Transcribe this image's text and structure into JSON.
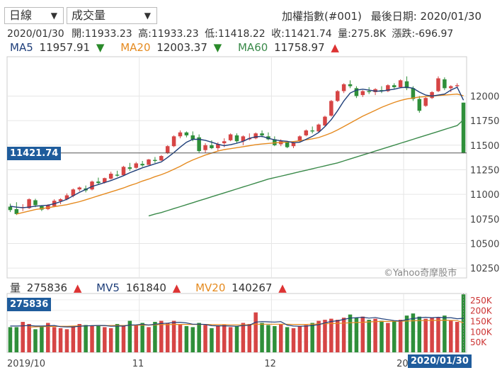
{
  "controls": {
    "period_select": "日線",
    "indicator_select": "成交量"
  },
  "header": {
    "title": "加權指數(#001)",
    "last_date_label": "最後日期:",
    "last_date": "2020/01/30"
  },
  "quote": {
    "date": "2020/01/30",
    "open_label": "開:",
    "open": "11933.23",
    "high_label": "高:",
    "high": "11933.23",
    "low_label": "低:",
    "low": "11418.22",
    "close_label": "收:",
    "close": "11421.74",
    "volume_label": "量:",
    "volume": "275.8K",
    "change_label": "漲跌:",
    "change": "-696.97"
  },
  "ma_legend": [
    {
      "name": "MA5",
      "value": "11957.91",
      "dir": "down",
      "color": "#1f3f7a"
    },
    {
      "name": "MA20",
      "value": "12003.37",
      "dir": "down",
      "color": "#e58a1f"
    },
    {
      "name": "MA60",
      "value": "11758.97",
      "dir": "up",
      "color": "#3a8a4a"
    }
  ],
  "vol_legend": [
    {
      "name": "量",
      "value": "275836",
      "dir": "up",
      "color": "#333"
    },
    {
      "name": "MV5",
      "value": "161840",
      "dir": "up",
      "color": "#1f3f7a"
    },
    {
      "name": "MV20",
      "value": "140267",
      "dir": "up",
      "color": "#e58a1f"
    }
  ],
  "watermark": "©Yahoo奇摩股市",
  "price_tag": "11421.74",
  "volume_tag": "275836",
  "date_tag": "2020/01/30",
  "chart_data": {
    "type": "candlestick",
    "price_axis": {
      "ylim": [
        10150,
        12400
      ],
      "ticks": [
        12000,
        11750,
        11500,
        11250,
        11000,
        10750,
        10500,
        10250
      ]
    },
    "volume_axis": {
      "ylim": [
        0,
        280
      ],
      "ticks": [
        250,
        200,
        150,
        100,
        50
      ],
      "tick_labels": [
        "250K",
        "200K",
        "150K",
        "100K",
        "50K"
      ]
    },
    "x_labels": [
      {
        "label": "2019/10",
        "index": 0
      },
      {
        "label": "11",
        "index": 21
      },
      {
        "label": "12",
        "index": 42
      },
      {
        "label": "2020/01",
        "index": 63
      }
    ],
    "ohlc": [
      [
        10875,
        10905,
        10820,
        10840
      ],
      [
        10850,
        10920,
        10790,
        10800
      ],
      [
        10860,
        10900,
        10830,
        10870
      ],
      [
        10860,
        10960,
        10850,
        10950
      ],
      [
        10940,
        10955,
        10870,
        10890
      ],
      [
        10880,
        10890,
        10830,
        10845
      ],
      [
        10850,
        10900,
        10840,
        10890
      ],
      [
        10880,
        10950,
        10870,
        10935
      ],
      [
        10930,
        10960,
        10900,
        10950
      ],
      [
        10950,
        11010,
        10940,
        10990
      ],
      [
        10985,
        11060,
        10970,
        11050
      ],
      [
        11050,
        11080,
        11030,
        11070
      ],
      [
        11060,
        11090,
        11020,
        11040
      ],
      [
        11050,
        11140,
        11040,
        11130
      ],
      [
        11130,
        11170,
        11100,
        11115
      ],
      [
        11120,
        11170,
        11110,
        11165
      ],
      [
        11160,
        11230,
        11150,
        11210
      ],
      [
        11200,
        11240,
        11180,
        11190
      ],
      [
        11195,
        11290,
        11190,
        11280
      ],
      [
        11275,
        11320,
        11240,
        11260
      ],
      [
        11270,
        11330,
        11260,
        11315
      ],
      [
        11310,
        11340,
        11280,
        11295
      ],
      [
        11300,
        11360,
        11300,
        11355
      ],
      [
        11350,
        11380,
        11320,
        11340
      ],
      [
        11345,
        11400,
        11340,
        11390
      ],
      [
        11420,
        11500,
        11410,
        11490
      ],
      [
        11490,
        11600,
        11480,
        11590
      ],
      [
        11590,
        11650,
        11570,
        11630
      ],
      [
        11630,
        11640,
        11580,
        11600
      ],
      [
        11600,
        11640,
        11540,
        11560
      ],
      [
        11580,
        11610,
        11420,
        11440
      ],
      [
        11450,
        11520,
        11420,
        11500
      ],
      [
        11500,
        11550,
        11460,
        11470
      ],
      [
        11470,
        11530,
        11440,
        11510
      ],
      [
        11520,
        11570,
        11480,
        11540
      ],
      [
        11550,
        11620,
        11540,
        11610
      ],
      [
        11600,
        11620,
        11520,
        11540
      ],
      [
        11540,
        11600,
        11500,
        11590
      ],
      [
        11560,
        11620,
        11550,
        11570
      ],
      [
        11570,
        11630,
        11560,
        11620
      ],
      [
        11620,
        11650,
        11580,
        11600
      ],
      [
        11590,
        11630,
        11550,
        11560
      ],
      [
        11560,
        11590,
        11490,
        11500
      ],
      [
        11510,
        11560,
        11490,
        11540
      ],
      [
        11530,
        11540,
        11470,
        11480
      ],
      [
        11490,
        11540,
        11470,
        11530
      ],
      [
        11540,
        11600,
        11530,
        11590
      ],
      [
        11600,
        11660,
        11590,
        11650
      ],
      [
        11650,
        11690,
        11620,
        11640
      ],
      [
        11640,
        11720,
        11630,
        11710
      ],
      [
        11700,
        11800,
        11690,
        11790
      ],
      [
        11800,
        11960,
        11790,
        11950
      ],
      [
        11950,
        12060,
        11940,
        12050
      ],
      [
        12050,
        12130,
        12030,
        12120
      ],
      [
        12120,
        12160,
        12080,
        12100
      ],
      [
        12080,
        12100,
        11980,
        12000
      ],
      [
        12010,
        12060,
        11990,
        12050
      ],
      [
        12050,
        12090,
        12020,
        12040
      ],
      [
        12040,
        12080,
        12010,
        12070
      ],
      [
        12060,
        12100,
        12030,
        12050
      ],
      [
        12050,
        12120,
        12040,
        12110
      ],
      [
        12110,
        12130,
        12070,
        12090
      ],
      [
        12090,
        12170,
        12080,
        12160
      ],
      [
        12150,
        12200,
        12060,
        12080
      ],
      [
        12080,
        12100,
        11950,
        11970
      ],
      [
        11970,
        12000,
        11830,
        11850
      ],
      [
        11900,
        11990,
        11890,
        11980
      ],
      [
        11980,
        12050,
        11970,
        12040
      ],
      [
        12050,
        12200,
        12040,
        12180
      ],
      [
        12170,
        12190,
        12060,
        12080
      ],
      [
        12080,
        12110,
        12040,
        12100
      ],
      [
        12100,
        12130,
        12080,
        12110
      ],
      [
        11933,
        11933,
        11418,
        11421
      ]
    ],
    "ma5": [
      10880,
      10870,
      10865,
      10870,
      10880,
      10885,
      10890,
      10905,
      10925,
      10950,
      10985,
      11020,
      11050,
      11080,
      11100,
      11120,
      11140,
      11165,
      11190,
      11220,
      11245,
      11270,
      11290,
      11310,
      11330,
      11375,
      11425,
      11480,
      11530,
      11560,
      11560,
      11550,
      11530,
      11510,
      11495,
      11505,
      11520,
      11540,
      11570,
      11585,
      11590,
      11570,
      11555,
      11545,
      11540,
      11525,
      11530,
      11560,
      11590,
      11630,
      11690,
      11760,
      11850,
      11950,
      12030,
      12060,
      12070,
      12060,
      12050,
      12050,
      12060,
      12070,
      12085,
      12090,
      12080,
      12040,
      12010,
      12000,
      12010,
      12020,
      12060,
      12090,
      11958
    ],
    "ma20": [
      null,
      10800,
      10815,
      10830,
      10845,
      10855,
      10865,
      10875,
      10885,
      10895,
      10910,
      10925,
      10945,
      10965,
      10985,
      11005,
      11025,
      11045,
      11065,
      11090,
      11110,
      11135,
      11155,
      11180,
      11200,
      11225,
      11255,
      11285,
      11320,
      11350,
      11375,
      11400,
      11420,
      11440,
      11455,
      11465,
      11475,
      11485,
      11495,
      11505,
      11512,
      11518,
      11523,
      11528,
      11532,
      11537,
      11545,
      11555,
      11565,
      11578,
      11600,
      11625,
      11655,
      11690,
      11725,
      11760,
      11795,
      11825,
      11855,
      11885,
      11910,
      11935,
      11955,
      11970,
      11980,
      11990,
      11995,
      12000,
      12005,
      12010,
      12015,
      12020,
      12003
    ],
    "ma60": [
      null,
      null,
      null,
      null,
      null,
      null,
      null,
      null,
      null,
      null,
      null,
      null,
      null,
      null,
      null,
      null,
      null,
      null,
      null,
      null,
      null,
      null,
      10780,
      10800,
      10815,
      10835,
      10855,
      10875,
      10895,
      10915,
      10935,
      10955,
      10975,
      10995,
      11015,
      11035,
      11055,
      11075,
      11095,
      11115,
      11135,
      11155,
      11170,
      11185,
      11200,
      11215,
      11230,
      11245,
      11260,
      11275,
      11290,
      11305,
      11320,
      11340,
      11360,
      11380,
      11400,
      11420,
      11440,
      11460,
      11480,
      11500,
      11520,
      11540,
      11560,
      11580,
      11600,
      11620,
      11640,
      11660,
      11680,
      11700,
      11759
    ],
    "volume": [
      120,
      120,
      145,
      135,
      110,
      125,
      140,
      120,
      115,
      110,
      120,
      135,
      130,
      125,
      130,
      120,
      115,
      135,
      125,
      150,
      130,
      140,
      120,
      145,
      150,
      140,
      150,
      135,
      125,
      120,
      140,
      130,
      115,
      125,
      130,
      120,
      125,
      140,
      135,
      190,
      140,
      130,
      125,
      135,
      120,
      115,
      125,
      130,
      140,
      150,
      155,
      160,
      155,
      165,
      180,
      165,
      170,
      155,
      160,
      150,
      140,
      150,
      155,
      175,
      185,
      170,
      160,
      165,
      165,
      175,
      150,
      145,
      276
    ],
    "mv5": [
      125,
      125,
      126,
      128,
      125,
      125,
      126,
      128,
      122,
      121,
      121,
      124,
      126,
      127,
      128,
      128,
      124,
      125,
      125,
      130,
      131,
      134,
      130,
      134,
      137,
      139,
      142,
      143,
      140,
      134,
      134,
      133,
      127,
      126,
      126,
      125,
      124,
      128,
      129,
      144,
      146,
      145,
      144,
      146,
      130,
      125,
      124,
      125,
      128,
      132,
      140,
      147,
      150,
      157,
      163,
      165,
      167,
      163,
      166,
      160,
      156,
      151,
      149,
      156,
      161,
      165,
      167,
      165,
      167,
      165,
      165,
      160,
      162
    ],
    "mv20": [
      null,
      null,
      null,
      120,
      121,
      122,
      123,
      123,
      124,
      124,
      125,
      126,
      126,
      127,
      127,
      127,
      128,
      128,
      128,
      129,
      129,
      130,
      130,
      131,
      132,
      132,
      133,
      133,
      133,
      133,
      133,
      133,
      132,
      132,
      132,
      131,
      131,
      131,
      131,
      134,
      134,
      134,
      134,
      134,
      134,
      133,
      133,
      133,
      134,
      135,
      136,
      137,
      138,
      139,
      141,
      142,
      143,
      145,
      146,
      147,
      147,
      148,
      148,
      149,
      150,
      151,
      151,
      152,
      152,
      153,
      152,
      151,
      140
    ]
  }
}
